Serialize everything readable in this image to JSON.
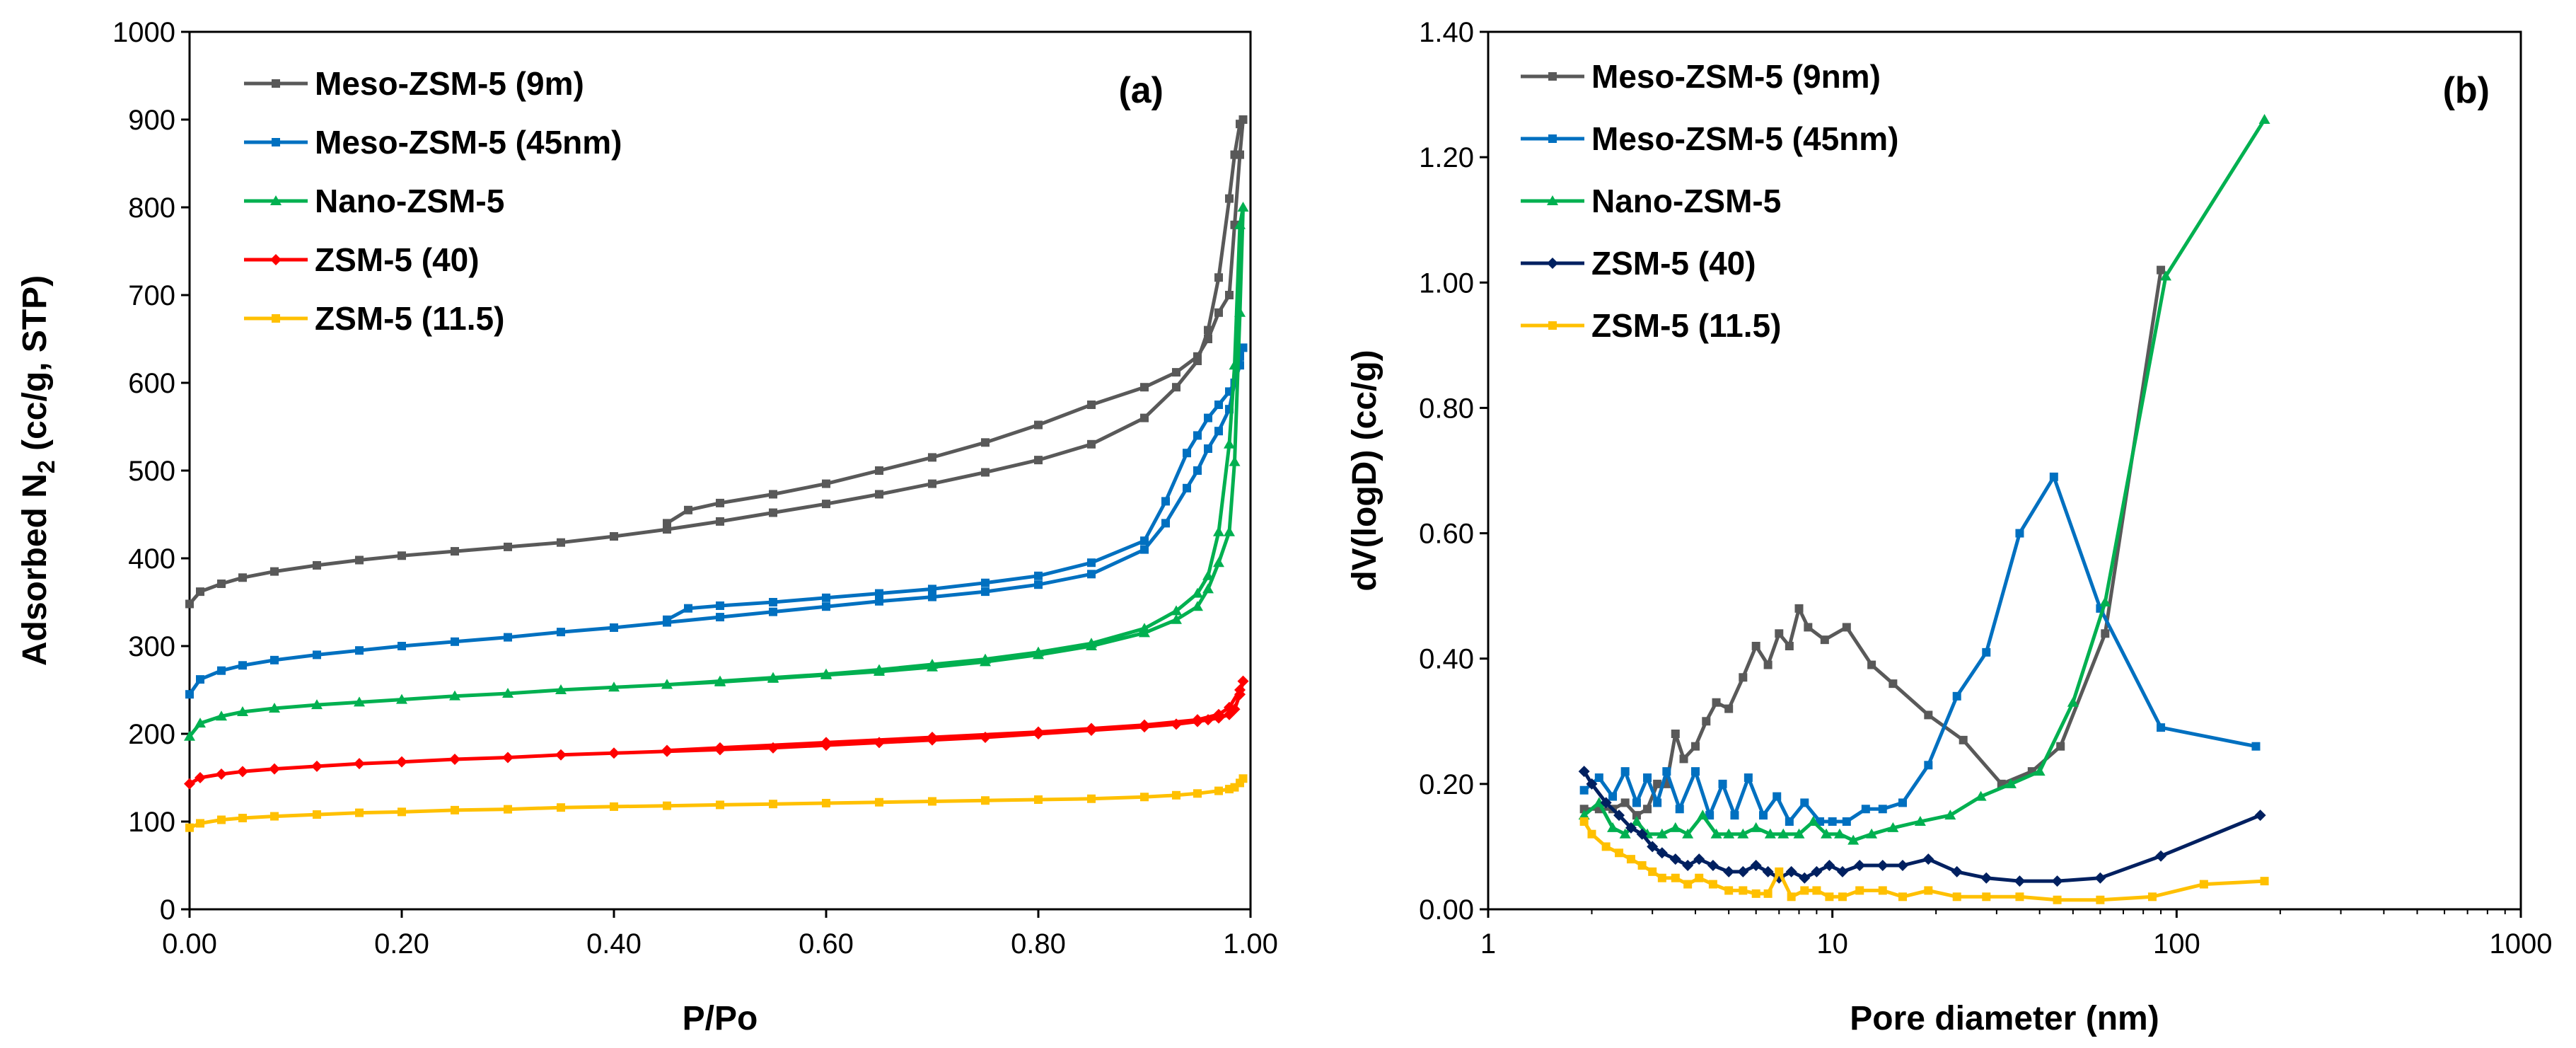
{
  "chart_data": [
    {
      "type": "line",
      "panel_label": "(a)",
      "xlabel": "P/Po",
      "ylabel_parts": [
        "Adsorbed N",
        "2",
        " (cc/g, STP)"
      ],
      "xlim": [
        0,
        1
      ],
      "ylim": [
        0,
        1000
      ],
      "xticks": [
        0,
        0.2,
        0.4,
        0.6,
        0.8,
        1.0
      ],
      "xtick_labels": [
        "0.00",
        "0.20",
        "0.40",
        "0.60",
        "0.80",
        "1.00"
      ],
      "yticks": [
        0,
        100,
        200,
        300,
        400,
        500,
        600,
        700,
        800,
        900,
        1000
      ],
      "ytick_labels": [
        "0",
        "100",
        "200",
        "300",
        "400",
        "500",
        "600",
        "700",
        "800",
        "900",
        "1000"
      ],
      "legend_position": "top-left",
      "series": [
        {
          "name": "Meso-ZSM-5 (9m)",
          "color": "#595959",
          "marker": "square",
          "x": [
            0.0,
            0.01,
            0.03,
            0.05,
            0.08,
            0.12,
            0.16,
            0.2,
            0.25,
            0.3,
            0.35,
            0.4,
            0.45,
            0.5,
            0.55,
            0.6,
            0.65,
            0.7,
            0.75,
            0.8,
            0.85,
            0.9,
            0.93,
            0.95,
            0.96,
            0.97,
            0.98,
            0.985,
            0.99,
            0.993,
            0.99,
            0.985,
            0.98,
            0.97,
            0.96,
            0.95,
            0.93,
            0.9,
            0.85,
            0.8,
            0.75,
            0.7,
            0.65,
            0.6,
            0.55,
            0.5,
            0.47,
            0.45
          ],
          "y": [
            348,
            362,
            371,
            378,
            385,
            392,
            398,
            403,
            408,
            413,
            418,
            425,
            433,
            442,
            452,
            462,
            473,
            485,
            498,
            512,
            530,
            560,
            595,
            625,
            660,
            720,
            810,
            860,
            895,
            900,
            860,
            780,
            700,
            680,
            650,
            630,
            612,
            595,
            575,
            552,
            532,
            515,
            500,
            485,
            473,
            463,
            455,
            440
          ]
        },
        {
          "name": "Meso-ZSM-5 (45nm)",
          "color": "#0070C0",
          "marker": "square",
          "x": [
            0.0,
            0.01,
            0.03,
            0.05,
            0.08,
            0.12,
            0.16,
            0.2,
            0.25,
            0.3,
            0.35,
            0.4,
            0.45,
            0.5,
            0.55,
            0.6,
            0.65,
            0.7,
            0.75,
            0.8,
            0.85,
            0.9,
            0.92,
            0.94,
            0.95,
            0.96,
            0.97,
            0.98,
            0.985,
            0.99,
            0.993,
            0.99,
            0.985,
            0.98,
            0.97,
            0.96,
            0.95,
            0.94,
            0.92,
            0.9,
            0.85,
            0.8,
            0.75,
            0.7,
            0.65,
            0.6,
            0.55,
            0.5,
            0.47,
            0.45
          ],
          "y": [
            245,
            262,
            272,
            278,
            284,
            290,
            295,
            300,
            305,
            310,
            316,
            321,
            327,
            333,
            339,
            345,
            351,
            356,
            362,
            370,
            382,
            410,
            440,
            480,
            500,
            525,
            545,
            570,
            600,
            630,
            640,
            620,
            600,
            590,
            575,
            560,
            540,
            520,
            465,
            420,
            395,
            380,
            372,
            365,
            360,
            355,
            350,
            346,
            343,
            330
          ]
        },
        {
          "name": "Nano-ZSM-5",
          "color": "#00B050",
          "marker": "triangle",
          "x": [
            0.0,
            0.01,
            0.03,
            0.05,
            0.08,
            0.12,
            0.16,
            0.2,
            0.25,
            0.3,
            0.35,
            0.4,
            0.45,
            0.5,
            0.55,
            0.6,
            0.65,
            0.7,
            0.75,
            0.8,
            0.85,
            0.9,
            0.93,
            0.95,
            0.96,
            0.97,
            0.98,
            0.985,
            0.99,
            0.993,
            0.99,
            0.985,
            0.98,
            0.97,
            0.96,
            0.95,
            0.93,
            0.9,
            0.85,
            0.8,
            0.75,
            0.7,
            0.65,
            0.6,
            0.55,
            0.5,
            0.45
          ],
          "y": [
            197,
            212,
            220,
            225,
            229,
            233,
            236,
            239,
            243,
            246,
            250,
            253,
            256,
            259,
            263,
            267,
            271,
            276,
            282,
            290,
            300,
            315,
            330,
            345,
            365,
            395,
            430,
            510,
            680,
            800,
            780,
            620,
            530,
            430,
            380,
            360,
            340,
            320,
            303,
            293,
            285,
            279,
            273,
            268,
            264,
            260,
            256
          ]
        },
        {
          "name": "ZSM-5 (40)",
          "color": "#FF0000",
          "marker": "diamond",
          "x": [
            0.0,
            0.01,
            0.03,
            0.05,
            0.08,
            0.12,
            0.16,
            0.2,
            0.25,
            0.3,
            0.35,
            0.4,
            0.45,
            0.5,
            0.55,
            0.6,
            0.65,
            0.7,
            0.75,
            0.8,
            0.85,
            0.9,
            0.93,
            0.95,
            0.96,
            0.97,
            0.98,
            0.985,
            0.99,
            0.993,
            0.99,
            0.98,
            0.97,
            0.95,
            0.9,
            0.85,
            0.8,
            0.7,
            0.6,
            0.5,
            0.45
          ],
          "y": [
            143,
            150,
            154,
            157,
            160,
            163,
            166,
            168,
            171,
            173,
            176,
            178,
            180,
            182,
            184,
            187,
            190,
            193,
            196,
            200,
            204,
            208,
            211,
            214,
            216,
            218,
            222,
            228,
            245,
            260,
            250,
            230,
            222,
            216,
            210,
            206,
            202,
            196,
            190,
            184,
            181
          ]
        },
        {
          "name": "ZSM-5 (11.5)",
          "color": "#FFC000",
          "marker": "square",
          "x": [
            0.0,
            0.01,
            0.03,
            0.05,
            0.08,
            0.12,
            0.16,
            0.2,
            0.25,
            0.3,
            0.35,
            0.4,
            0.45,
            0.5,
            0.55,
            0.6,
            0.65,
            0.7,
            0.75,
            0.8,
            0.85,
            0.9,
            0.93,
            0.95,
            0.97,
            0.98,
            0.985,
            0.99,
            0.993
          ],
          "y": [
            93,
            98,
            102,
            104,
            106,
            108,
            110,
            111,
            113,
            114,
            116,
            117,
            118,
            119,
            120,
            121,
            122,
            123,
            124,
            125,
            126,
            128,
            130,
            132,
            135,
            137,
            139,
            144,
            149
          ]
        }
      ]
    },
    {
      "type": "line",
      "panel_label": "(b)",
      "xlabel": "Pore diameter (nm)",
      "ylabel_parts": [
        "dV(logD) (cc/g)"
      ],
      "xscale": "log",
      "xlim": [
        1,
        1000
      ],
      "ylim": [
        0,
        1.4
      ],
      "xticks": [
        1,
        10,
        100,
        1000
      ],
      "xtick_labels": [
        "1",
        "10",
        "100",
        "1000"
      ],
      "yticks": [
        0,
        0.2,
        0.4,
        0.6,
        0.8,
        1.0,
        1.2,
        1.4
      ],
      "ytick_labels": [
        "0.00",
        "0.20",
        "0.40",
        "0.60",
        "0.80",
        "1.00",
        "1.20",
        "1.40"
      ],
      "legend_position": "top-left",
      "series": [
        {
          "name": "Meso-ZSM-5 (9nm)",
          "color": "#595959",
          "marker": "square",
          "x": [
            1.9,
            2.1,
            2.3,
            2.5,
            2.7,
            2.9,
            3.1,
            3.3,
            3.5,
            3.7,
            4.0,
            4.3,
            4.6,
            5.0,
            5.5,
            6.0,
            6.5,
            7.0,
            7.5,
            8.0,
            8.5,
            9.5,
            11.0,
            13.0,
            15.0,
            19.0,
            24.0,
            31.0,
            38.0,
            46.0,
            62.0,
            90.0
          ],
          "y": [
            0.16,
            0.16,
            0.16,
            0.17,
            0.15,
            0.16,
            0.2,
            0.2,
            0.28,
            0.24,
            0.26,
            0.3,
            0.33,
            0.32,
            0.37,
            0.42,
            0.39,
            0.44,
            0.42,
            0.48,
            0.45,
            0.43,
            0.45,
            0.39,
            0.36,
            0.31,
            0.27,
            0.2,
            0.22,
            0.26,
            0.44,
            1.02
          ]
        },
        {
          "name": "Meso-ZSM-5 (45nm)",
          "color": "#0070C0",
          "marker": "square",
          "x": [
            1.9,
            2.1,
            2.3,
            2.5,
            2.7,
            2.9,
            3.1,
            3.3,
            3.6,
            4.0,
            4.4,
            4.8,
            5.2,
            5.7,
            6.3,
            6.9,
            7.5,
            8.3,
            9.2,
            10.0,
            11.0,
            12.5,
            14.0,
            16.0,
            19.0,
            23.0,
            28.0,
            35.0,
            44.0,
            60.0,
            90.0,
            170.0
          ],
          "y": [
            0.19,
            0.21,
            0.18,
            0.22,
            0.17,
            0.21,
            0.17,
            0.22,
            0.16,
            0.22,
            0.15,
            0.2,
            0.15,
            0.21,
            0.15,
            0.18,
            0.14,
            0.17,
            0.14,
            0.14,
            0.14,
            0.16,
            0.16,
            0.17,
            0.23,
            0.34,
            0.41,
            0.6,
            0.69,
            0.48,
            0.29,
            0.26
          ]
        },
        {
          "name": "Nano-ZSM-5",
          "color": "#00B050",
          "marker": "triangle",
          "x": [
            1.9,
            2.1,
            2.3,
            2.5,
            2.7,
            2.9,
            3.2,
            3.5,
            3.8,
            4.2,
            4.6,
            5.0,
            5.5,
            6.0,
            6.6,
            7.2,
            8.0,
            8.8,
            9.6,
            10.5,
            11.5,
            13.0,
            15.0,
            18.0,
            22.0,
            27.0,
            33.0,
            40.0,
            50.0,
            62.0,
            93.0,
            180.0
          ],
          "y": [
            0.15,
            0.17,
            0.13,
            0.12,
            0.14,
            0.12,
            0.12,
            0.13,
            0.12,
            0.15,
            0.12,
            0.12,
            0.12,
            0.13,
            0.12,
            0.12,
            0.12,
            0.14,
            0.12,
            0.12,
            0.11,
            0.12,
            0.13,
            0.14,
            0.15,
            0.18,
            0.2,
            0.22,
            0.33,
            0.49,
            1.01,
            1.26
          ]
        },
        {
          "name": "ZSM-5 (40)",
          "color": "#002060",
          "marker": "diamond",
          "x": [
            1.9,
            2.0,
            2.2,
            2.4,
            2.6,
            2.8,
            3.0,
            3.2,
            3.5,
            3.8,
            4.1,
            4.5,
            5.0,
            5.5,
            6.0,
            6.5,
            7.0,
            7.6,
            8.3,
            9.0,
            9.8,
            10.7,
            12.0,
            14.0,
            16.0,
            19.0,
            23.0,
            28.0,
            35.0,
            45.0,
            60.0,
            90.0,
            175.0
          ],
          "y": [
            0.22,
            0.2,
            0.17,
            0.15,
            0.13,
            0.12,
            0.1,
            0.09,
            0.08,
            0.07,
            0.08,
            0.07,
            0.06,
            0.06,
            0.07,
            0.06,
            0.05,
            0.06,
            0.05,
            0.06,
            0.07,
            0.06,
            0.07,
            0.07,
            0.07,
            0.08,
            0.06,
            0.05,
            0.045,
            0.045,
            0.05,
            0.085,
            0.15
          ]
        },
        {
          "name": "ZSM-5 (11.5)",
          "color": "#FFC000",
          "marker": "square",
          "x": [
            1.9,
            2.0,
            2.2,
            2.4,
            2.6,
            2.8,
            3.0,
            3.2,
            3.5,
            3.8,
            4.1,
            4.5,
            5.0,
            5.5,
            6.0,
            6.5,
            7.0,
            7.6,
            8.3,
            9.0,
            9.8,
            10.7,
            12.0,
            14.0,
            16.0,
            19.0,
            23.0,
            28.0,
            35.0,
            45.0,
            60.0,
            85.0,
            120.0,
            180.0
          ],
          "y": [
            0.14,
            0.12,
            0.1,
            0.09,
            0.08,
            0.07,
            0.06,
            0.05,
            0.05,
            0.04,
            0.05,
            0.04,
            0.03,
            0.03,
            0.025,
            0.025,
            0.06,
            0.02,
            0.03,
            0.03,
            0.02,
            0.02,
            0.03,
            0.03,
            0.02,
            0.03,
            0.02,
            0.02,
            0.02,
            0.015,
            0.015,
            0.02,
            0.04,
            0.045
          ]
        }
      ]
    }
  ]
}
